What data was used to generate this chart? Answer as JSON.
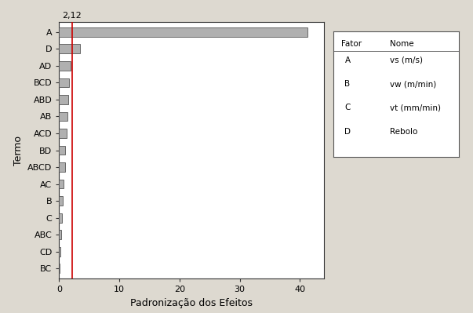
{
  "terms": [
    "A",
    "D",
    "AD",
    "BCD",
    "ABD",
    "AB",
    "ACD",
    "BD",
    "ABCD",
    "AC",
    "B",
    "C",
    "ABC",
    "CD",
    "BC"
  ],
  "values": [
    41.2,
    3.5,
    1.9,
    1.65,
    1.45,
    1.35,
    1.25,
    1.05,
    0.95,
    0.75,
    0.55,
    0.45,
    0.3,
    0.2,
    0.1
  ],
  "alpha_line": 2.12,
  "bar_color": "#b0b0b0",
  "bar_edge_color": "#555555",
  "line_color": "#cc0000",
  "background_color": "#ddd9d0",
  "plot_bg_color": "#ffffff",
  "xlabel": "Padronização dos Efeitos",
  "ylabel": "Termo",
  "alpha_label": "2,12",
  "xlim": [
    0,
    44
  ],
  "xticks": [
    0,
    10,
    20,
    30,
    40
  ],
  "legend_entries": [
    [
      "A",
      "vs (m/s)"
    ],
    [
      "B",
      "vw (m/min)"
    ],
    [
      "C",
      "vt (mm/min)"
    ],
    [
      "D",
      "Rebolo"
    ]
  ],
  "axis_fontsize": 9,
  "tick_fontsize": 8,
  "legend_fontsize": 7.5
}
